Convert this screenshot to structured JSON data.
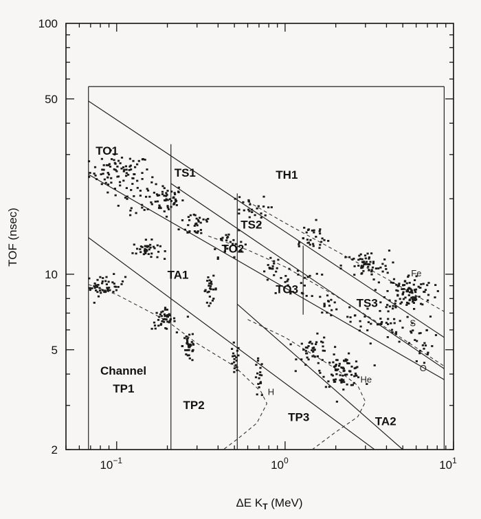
{
  "chart_data": {
    "type": "scatter",
    "xlabel": "ΔE K",
    "xlabel_sub": "T",
    "xlabel_unit": " (MeV)",
    "ylabel": "TOF  (nsec)",
    "x_scale": "log",
    "y_scale": "log",
    "xlim": [
      0.05,
      10
    ],
    "ylim": [
      2,
      100
    ],
    "x_ticks": [
      {
        "value": 0.1,
        "base": "10",
        "exp": "−1"
      },
      {
        "value": 1,
        "base": "10",
        "exp": "0"
      },
      {
        "value": 10,
        "base": "10",
        "exp": "1"
      }
    ],
    "y_ticks": [
      {
        "value": 2,
        "label": "2"
      },
      {
        "value": 5,
        "label": "5"
      },
      {
        "value": 10,
        "label": "10"
      },
      {
        "value": 50,
        "label": "50"
      },
      {
        "value": 100,
        "label": "100"
      }
    ],
    "regions": [
      {
        "name": "TO1",
        "label": "TO1",
        "x": 0.075,
        "y": 30
      },
      {
        "name": "TS1",
        "label": "TS1",
        "x": 0.22,
        "y": 24.5
      },
      {
        "name": "TH1",
        "label": "TH1",
        "x": 0.88,
        "y": 24
      },
      {
        "name": "TS2",
        "label": "TS2",
        "x": 0.545,
        "y": 15.2
      },
      {
        "name": "TO2",
        "label": "TO2",
        "x": 0.42,
        "y": 12.2
      },
      {
        "name": "TA1",
        "label": "TA1",
        "x": 0.2,
        "y": 9.6
      },
      {
        "name": "TO3",
        "label": "TO3",
        "x": 0.88,
        "y": 8.4
      },
      {
        "name": "TS3",
        "label": "TS3",
        "x": 2.65,
        "y": 7.4
      },
      {
        "name": "Channel",
        "label": "Channel",
        "x": 0.08,
        "y": 3.98
      },
      {
        "name": "TP1",
        "label": "TP1",
        "x": 0.095,
        "y": 3.38
      },
      {
        "name": "TP2",
        "label": "TP2",
        "x": 0.248,
        "y": 2.9
      },
      {
        "name": "TP3",
        "label": "TP3",
        "x": 1.04,
        "y": 2.6
      },
      {
        "name": "TA2",
        "label": "TA2",
        "x": 3.42,
        "y": 2.5
      }
    ],
    "element_labels": [
      {
        "name": "Fe",
        "label": "Fe",
        "x": 5.6,
        "y": 9.8
      },
      {
        "name": "S",
        "label": "S",
        "x": 5.5,
        "y": 6.2
      },
      {
        "name": "O",
        "label": "O",
        "x": 6.3,
        "y": 4.1
      },
      {
        "name": "He",
        "label": "He",
        "x": 2.8,
        "y": 3.7
      },
      {
        "name": "H",
        "label": "H",
        "x": 0.79,
        "y": 3.3
      }
    ],
    "boundary_lines": [
      {
        "name": "box-left",
        "x": [
          0.068,
          0.068
        ],
        "y": [
          2,
          56
        ]
      },
      {
        "name": "box-top",
        "x": [
          0.068,
          8.8
        ],
        "y": [
          56,
          56
        ]
      },
      {
        "name": "box-right",
        "x": [
          8.8,
          8.8
        ],
        "y": [
          2,
          56
        ]
      },
      {
        "name": "vline-0.2",
        "x": [
          0.21,
          0.21
        ],
        "y": [
          2,
          33
        ]
      },
      {
        "name": "vline-0.5",
        "x": [
          0.52,
          0.52
        ],
        "y": [
          2,
          21
        ]
      },
      {
        "name": "vline-1.3",
        "x": [
          1.28,
          1.28
        ],
        "y": [
          6.9,
          13
        ]
      },
      {
        "name": "diag-1",
        "x": [
          0.068,
          8.8
        ],
        "y": [
          49,
          5.6
        ]
      },
      {
        "name": "diag-2",
        "x": [
          0.068,
          8.8
        ],
        "y": [
          25,
          3.8
        ]
      },
      {
        "name": "diag-3",
        "x": [
          0.21,
          8.8
        ],
        "y": [
          23,
          4.2
        ]
      },
      {
        "name": "diag-4",
        "x": [
          0.068,
          3.4
        ],
        "y": [
          14,
          2
        ]
      },
      {
        "name": "diag-5",
        "x": [
          0.52,
          5.0
        ],
        "y": [
          7.6,
          2
        ]
      }
    ],
    "dashed_curves": [
      {
        "name": "fe-track",
        "points": [
          [
            0.6,
            19.5
          ],
          [
            1.0,
            16
          ],
          [
            2,
            12.4
          ],
          [
            4,
            9.6
          ],
          [
            8.8,
            7.1
          ]
        ]
      },
      {
        "name": "o-track",
        "points": [
          [
            0.35,
            14.2
          ],
          [
            0.6,
            12.5
          ],
          [
            1,
            10.7
          ],
          [
            2,
            8.2
          ],
          [
            4,
            6.1
          ],
          [
            8.8,
            4.3
          ]
        ]
      },
      {
        "name": "h-track",
        "points": [
          [
            0.068,
            9.1
          ],
          [
            0.1,
            8.3
          ],
          [
            0.2,
            6.5
          ],
          [
            0.3,
            5.3
          ],
          [
            0.5,
            4.3
          ],
          [
            0.72,
            3.4
          ],
          [
            0.78,
            3.05
          ],
          [
            0.68,
            2.55
          ],
          [
            0.52,
            2.2
          ],
          [
            0.43,
            2.0
          ]
        ]
      },
      {
        "name": "he-track",
        "points": [
          [
            0.6,
            6.6
          ],
          [
            1.0,
            5.6
          ],
          [
            2,
            4.2
          ],
          [
            2.7,
            3.6
          ],
          [
            3.0,
            3.1
          ],
          [
            2.7,
            2.7
          ],
          [
            2.0,
            2.35
          ],
          [
            1.45,
            2.0
          ]
        ]
      }
    ],
    "point_clusters": [
      {
        "name": "c1",
        "cx": 0.105,
        "cy": 25.5,
        "sx": 0.09,
        "sy": 0.035,
        "n": 80
      },
      {
        "name": "c2",
        "cx": 0.19,
        "cy": 20,
        "sx": 0.06,
        "sy": 0.03,
        "n": 55
      },
      {
        "name": "c3",
        "cx": 0.3,
        "cy": 16,
        "sx": 0.05,
        "sy": 0.03,
        "n": 30
      },
      {
        "name": "c4",
        "cx": 0.45,
        "cy": 13.5,
        "sx": 0.05,
        "sy": 0.03,
        "n": 25
      },
      {
        "name": "c5",
        "cx": 0.15,
        "cy": 12.5,
        "sx": 0.04,
        "sy": 0.018,
        "n": 40
      },
      {
        "name": "c6",
        "cx": 0.085,
        "cy": 9,
        "sx": 0.06,
        "sy": 0.02,
        "n": 50
      },
      {
        "name": "c7",
        "cx": 0.36,
        "cy": 8.7,
        "sx": 0.02,
        "sy": 0.025,
        "n": 25
      },
      {
        "name": "c8",
        "cx": 0.19,
        "cy": 6.6,
        "sx": 0.035,
        "sy": 0.02,
        "n": 40
      },
      {
        "name": "c9",
        "cx": 0.27,
        "cy": 5.2,
        "sx": 0.02,
        "sy": 0.035,
        "n": 35
      },
      {
        "name": "c10",
        "cx": 0.5,
        "cy": 4.4,
        "sx": 0.015,
        "sy": 0.04,
        "n": 18
      },
      {
        "name": "c11",
        "cx": 0.7,
        "cy": 3.8,
        "sx": 0.012,
        "sy": 0.04,
        "n": 18
      },
      {
        "name": "c12",
        "cx": 0.85,
        "cy": 10.7,
        "sx": 0.02,
        "sy": 0.02,
        "n": 14
      },
      {
        "name": "c13",
        "cx": 1.5,
        "cy": 4.9,
        "sx": 0.05,
        "sy": 0.03,
        "n": 40
      },
      {
        "name": "c14",
        "cx": 2.2,
        "cy": 4.1,
        "sx": 0.06,
        "sy": 0.03,
        "n": 80
      },
      {
        "name": "c15",
        "cx": 1.8,
        "cy": 7.6,
        "sx": 0.03,
        "sy": 0.02,
        "n": 15
      },
      {
        "name": "c16",
        "cx": 3.0,
        "cy": 10.8,
        "sx": 0.07,
        "sy": 0.03,
        "n": 60
      },
      {
        "name": "c17",
        "cx": 5.5,
        "cy": 8.5,
        "sx": 0.07,
        "sy": 0.035,
        "n": 100
      },
      {
        "name": "c18",
        "cx": 1.4,
        "cy": 14,
        "sx": 0.06,
        "sy": 0.03,
        "n": 30
      },
      {
        "name": "c19",
        "cx": 0.6,
        "cy": 18,
        "sx": 0.06,
        "sy": 0.03,
        "n": 25
      },
      {
        "name": "c20",
        "cx": 1.1,
        "cy": 9.3,
        "sx": 0.08,
        "sy": 0.03,
        "n": 25
      },
      {
        "name": "c21",
        "cx": 3.5,
        "cy": 6.5,
        "sx": 0.08,
        "sy": 0.04,
        "n": 40
      },
      {
        "name": "c22",
        "cx": 6.5,
        "cy": 5.3,
        "sx": 0.06,
        "sy": 0.05,
        "n": 25
      },
      {
        "name": "c23",
        "cx": 0.13,
        "cy": 18.5,
        "sx": 0.08,
        "sy": 0.04,
        "n": 18
      }
    ],
    "grid": false,
    "legend": "none"
  }
}
